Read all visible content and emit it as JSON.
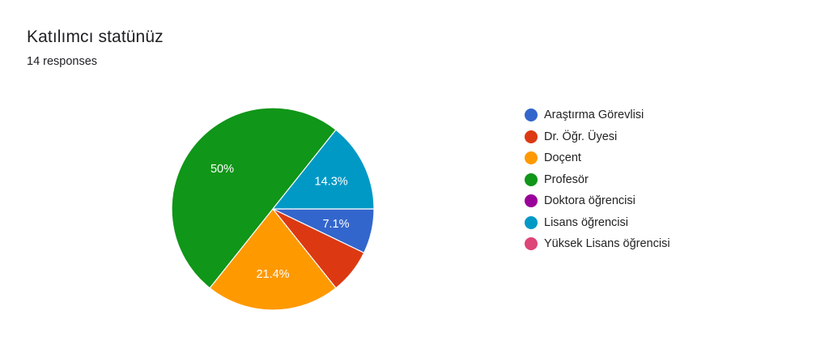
{
  "header": {
    "title": "Katılımcı statünüz",
    "subtitle": "14 responses"
  },
  "colors": {
    "background": "#ffffff",
    "slice_border": "#ffffff"
  },
  "chart_data": {
    "type": "pie",
    "title": "Katılımcı statünüz",
    "subtitle": "14 responses",
    "legend_position": "right",
    "start": "3 o'clock, clockwise",
    "slices": [
      {
        "label": "Araştırma Görevlisi",
        "count": 1,
        "percent_label": "7.1%",
        "color": "#3366cc"
      },
      {
        "label": "Dr. Öğr. Üyesi",
        "count": 1,
        "percent_label": "",
        "color": "#dc3912"
      },
      {
        "label": "Doçent",
        "count": 3,
        "percent_label": "21.4%",
        "color": "#ff9900"
      },
      {
        "label": "Profesör",
        "count": 7,
        "percent_label": "50%",
        "color": "#109618"
      },
      {
        "label": "Doktora öğrencisi",
        "count": 0,
        "percent_label": "",
        "color": "#990099"
      },
      {
        "label": "Lisans öğrencisi",
        "count": 2,
        "percent_label": "14.3%",
        "color": "#0099c6"
      },
      {
        "label": "Yüksek Lisans öğrencisi",
        "count": 0,
        "percent_label": "",
        "color": "#dd4477"
      }
    ]
  }
}
